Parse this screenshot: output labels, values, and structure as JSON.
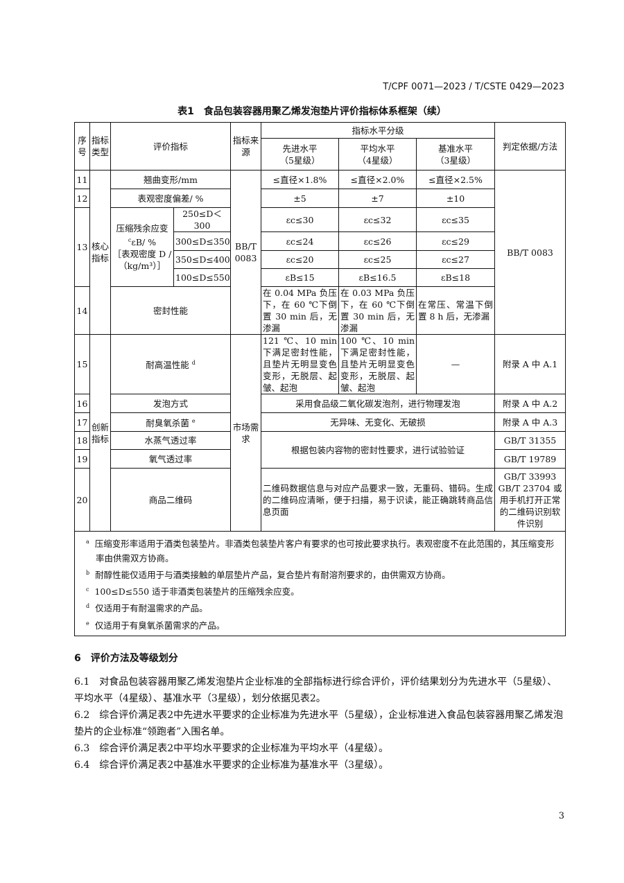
{
  "header": "T/CPF 0071—2023 / T/CSTE 0429—2023",
  "caption": "表1　食品包装容器用聚乙烯发泡垫片评价指标体系框架（续）",
  "table": {
    "h": {
      "no": "序号",
      "type": "指标类型",
      "indicator": "评价指标",
      "source": "指标来源",
      "level": "指标水平分级",
      "l5": "先进水平",
      "l5s": "（5星级）",
      "l4": "平均水平",
      "l4s": "（4星级）",
      "l3": "基准水平",
      "l3s": "（3星级）",
      "basis": "判定依据/方法"
    },
    "core": "核心指标",
    "innov": "创新指标",
    "src_core": "BB/T 0083",
    "src_innov": "市场需求",
    "basis_core": "BB/T 0083",
    "r11": {
      "no": "11",
      "name": "翘曲变形/mm",
      "a": "≤直径×1.8%",
      "b": "≤直径×2.0%",
      "c": "≤直径×2.5%"
    },
    "r12": {
      "no": "12",
      "name": "表观密度偏差/ %",
      "a": "±5",
      "b": "±7",
      "c": "±10"
    },
    "r13": {
      "no": "13",
      "name": "压缩残余应变",
      "name2": "εB/ %",
      "name3": "［表观密度 D /（kg/m³）］",
      "sup": "c",
      "rows": [
        {
          "range": "250≤D＜300",
          "a": "εc≤30",
          "b": "εc≤32",
          "c": "εc≤35"
        },
        {
          "range": "300≤D≤350",
          "a": "εc≤24",
          "b": "εc≤26",
          "c": "εc≤29"
        },
        {
          "range": "350≤D≤400",
          "a": "εc≤20",
          "b": "εc≤25",
          "c": "εc≤27"
        },
        {
          "range": "100≤D≤550",
          "a": "εB≤15",
          "b": "εB≤16.5",
          "c": "εB≤18"
        }
      ]
    },
    "r14": {
      "no": "14",
      "name": "密封性能",
      "a": "在 0.04 MPa 负压下，在 60 ℃下倒置 30 min 后，无渗漏",
      "b": "在 0.03 MPa 负压下，在 60 ℃下倒置 30 min 后，无渗漏",
      "c": "在常压、常温下倒置 8 h 后，无渗漏"
    },
    "r15": {
      "no": "15",
      "name": "耐高温性能",
      "sup": "d",
      "a": "121 ℃、10 min 下满足密封性能，且垫片无明显变色变形，无脱层、起皱、起泡",
      "b": "100 ℃、10 min 下满足密封性能，且垫片无明显变色变形，无脱层、起皱、起泡",
      "c": "—",
      "basis": "附录 A 中 A.1"
    },
    "r16": {
      "no": "16",
      "name": "发泡方式",
      "v": "采用食品级二氧化碳发泡剂，进行物理发泡",
      "basis": "附录 A 中 A.2"
    },
    "r17": {
      "no": "17",
      "name": "耐臭氧杀菌",
      "sup": "e",
      "v": "无异味、无变化、无破损",
      "basis": "附录 A 中 A.3"
    },
    "r18": {
      "no": "18",
      "name": "水蒸气透过率",
      "v": "根据包装内容物的密封性要求，进行试验验证",
      "basis": "GB/T 31355"
    },
    "r19": {
      "no": "19",
      "name": "氧气透过率",
      "basis": "GB/T 19789"
    },
    "r20": {
      "no": "20",
      "name": "商品二维码",
      "v": "二维码数据信息与对应产品要求一致，无重码、错码。生成的二维码应清晰，便于扫描，易于识读，能正确跳转商品信息页面",
      "basis": "GB/T 33993 GB/T 23704 或用手机打开正常的二维码识别软件识别"
    },
    "notes": [
      {
        "m": "a",
        "t": "压缩变形率适用于酒类包装垫片。非酒类包装垫片客户有要求的也可按此要求执行。表观密度不在此范围的，其压缩变形率由供需双方协商。"
      },
      {
        "m": "b",
        "t": "耐醇性能仅适用于与酒类接触的单层垫片产品，复合垫片有耐溶剂要求的，由供需双方协商。"
      },
      {
        "m": "c",
        "t": "100≤D≤550 适于非酒类包装垫片的压缩残余应变。"
      },
      {
        "m": "d",
        "t": "仅适用于有耐温需求的产品。"
      },
      {
        "m": "e",
        "t": "仅适用于有臭氧杀菌需求的产品。"
      }
    ]
  },
  "section": {
    "title": "6　评价方法及等级划分",
    "p1": "6.1　对食品包装容器用聚乙烯发泡垫片企业标准的全部指标进行综合评价，评价结果划分为先进水平（5星级）、平均水平（4星级）、基准水平（3星级），划分依据见表2。",
    "p2": "6.2　综合评价满足表2中先进水平要求的企业标准为先进水平（5星级），企业标准进入食品包装容器用聚乙烯发泡垫片的企业标准“领跑者”入围名单。",
    "p3": "6.3　综合评价满足表2中平均水平要求的企业标准为平均水平（4星级）。",
    "p4": "6.4　综合评价满足表2中基准水平要求的企业标准为基准水平（3星级）。"
  },
  "page_number": "3"
}
